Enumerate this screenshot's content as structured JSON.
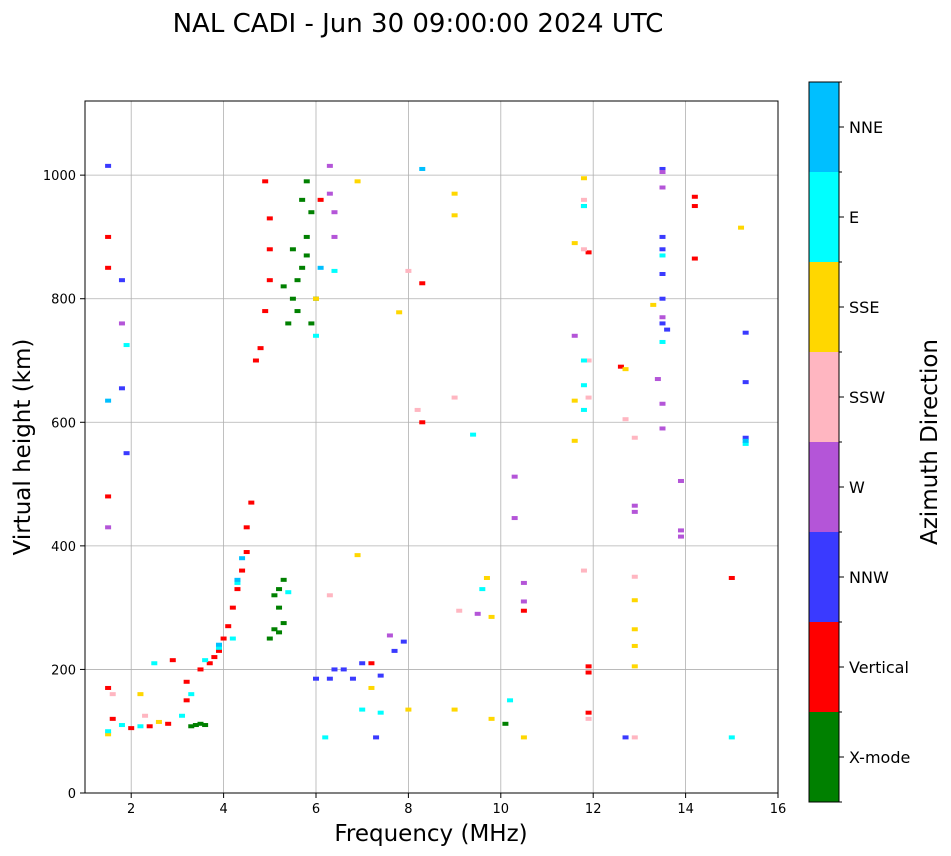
{
  "chart_data": {
    "type": "scatter",
    "title": "NAL CADI - Jun 30 09:00:00 2024 UTC",
    "xlabel": "Frequency (MHz)",
    "ylabel": "Virtual height (km)",
    "xlim": [
      1,
      16
    ],
    "ylim": [
      0,
      1120
    ],
    "xticks": [
      2,
      4,
      6,
      8,
      10,
      12,
      14,
      16
    ],
    "yticks": [
      0,
      200,
      400,
      600,
      800,
      1000
    ],
    "grid": true,
    "colorbar": {
      "label": "Azimuth Direction",
      "position": "right",
      "categories": [
        {
          "name": "X-mode",
          "color": "#008000"
        },
        {
          "name": "Vertical",
          "color": "#ff0000"
        },
        {
          "name": "NNW",
          "color": "#3a3aff"
        },
        {
          "name": "W",
          "color": "#b455d8"
        },
        {
          "name": "SSW",
          "color": "#ffb6c1"
        },
        {
          "name": "SSE",
          "color": "#ffd700"
        },
        {
          "name": "E",
          "color": "#00ffff"
        },
        {
          "name": "NNE",
          "color": "#00bfff"
        }
      ]
    },
    "series": [
      {
        "name": "X-mode",
        "points": [
          [
            3.4,
            110
          ],
          [
            3.5,
            112
          ],
          [
            3.6,
            110
          ],
          [
            3.3,
            108
          ],
          [
            5.2,
            330
          ],
          [
            5.3,
            345
          ],
          [
            5.1,
            320
          ],
          [
            5.2,
            300
          ],
          [
            5.3,
            275
          ],
          [
            5.2,
            260
          ],
          [
            5.0,
            250
          ],
          [
            5.1,
            265
          ],
          [
            5.5,
            800
          ],
          [
            5.6,
            830
          ],
          [
            5.7,
            850
          ],
          [
            5.8,
            870
          ],
          [
            5.6,
            780
          ],
          [
            5.4,
            760
          ],
          [
            5.8,
            900
          ],
          [
            5.9,
            940
          ],
          [
            5.7,
            960
          ],
          [
            5.5,
            880
          ],
          [
            5.3,
            820
          ],
          [
            5.9,
            760
          ],
          [
            6.0,
            800
          ],
          [
            5.8,
            990
          ],
          [
            10.1,
            112
          ],
          [
            11.8,
            950
          ]
        ]
      },
      {
        "name": "Vertical",
        "points": [
          [
            1.5,
            170
          ],
          [
            1.6,
            120
          ],
          [
            2.0,
            105
          ],
          [
            2.4,
            108
          ],
          [
            2.8,
            112
          ],
          [
            3.2,
            150
          ],
          [
            3.2,
            180
          ],
          [
            3.5,
            200
          ],
          [
            3.7,
            210
          ],
          [
            3.8,
            220
          ],
          [
            3.9,
            230
          ],
          [
            4.0,
            250
          ],
          [
            4.1,
            270
          ],
          [
            4.2,
            300
          ],
          [
            4.3,
            330
          ],
          [
            4.4,
            360
          ],
          [
            4.5,
            390
          ],
          [
            4.5,
            430
          ],
          [
            4.6,
            470
          ],
          [
            4.7,
            700
          ],
          [
            4.8,
            720
          ],
          [
            4.9,
            780
          ],
          [
            5.0,
            830
          ],
          [
            5.0,
            880
          ],
          [
            5.0,
            930
          ],
          [
            4.9,
            990
          ],
          [
            1.5,
            480
          ],
          [
            1.5,
            850
          ],
          [
            1.5,
            900
          ],
          [
            2.9,
            215
          ],
          [
            6.1,
            960
          ],
          [
            8.3,
            600
          ],
          [
            8.3,
            825
          ],
          [
            10.5,
            295
          ],
          [
            11.9,
            195
          ],
          [
            11.9,
            205
          ],
          [
            11.9,
            130
          ],
          [
            11.9,
            875
          ],
          [
            12.6,
            690
          ],
          [
            14.2,
            950
          ],
          [
            14.2,
            965
          ],
          [
            14.2,
            865
          ],
          [
            15.0,
            348
          ],
          [
            7.2,
            210
          ]
        ]
      },
      {
        "name": "NNW",
        "points": [
          [
            1.5,
            1015
          ],
          [
            1.8,
            830
          ],
          [
            1.8,
            655
          ],
          [
            1.9,
            550
          ],
          [
            6.0,
            185
          ],
          [
            6.3,
            185
          ],
          [
            6.6,
            200
          ],
          [
            6.8,
            185
          ],
          [
            7.0,
            210
          ],
          [
            7.4,
            190
          ],
          [
            7.3,
            90
          ],
          [
            7.7,
            230
          ],
          [
            7.9,
            245
          ],
          [
            13.5,
            1010
          ],
          [
            13.5,
            900
          ],
          [
            13.5,
            880
          ],
          [
            13.5,
            840
          ],
          [
            13.5,
            800
          ],
          [
            13.5,
            760
          ],
          [
            13.6,
            750
          ],
          [
            12.7,
            90
          ],
          [
            15.3,
            745
          ],
          [
            15.3,
            665
          ],
          [
            15.3,
            575
          ],
          [
            6.4,
            200
          ]
        ]
      },
      {
        "name": "W",
        "points": [
          [
            1.5,
            430
          ],
          [
            1.8,
            760
          ],
          [
            6.3,
            1015
          ],
          [
            6.3,
            970
          ],
          [
            6.4,
            940
          ],
          [
            6.4,
            900
          ],
          [
            10.3,
            512
          ],
          [
            10.3,
            445
          ],
          [
            10.5,
            340
          ],
          [
            10.5,
            310
          ],
          [
            12.9,
            465
          ],
          [
            12.9,
            455
          ],
          [
            13.4,
            670
          ],
          [
            13.5,
            630
          ],
          [
            13.5,
            590
          ],
          [
            13.5,
            770
          ],
          [
            13.5,
            980
          ],
          [
            13.5,
            1005
          ],
          [
            13.9,
            505
          ],
          [
            13.9,
            425
          ],
          [
            13.9,
            415
          ],
          [
            11.6,
            740
          ],
          [
            9.5,
            290
          ],
          [
            7.6,
            255
          ]
        ]
      },
      {
        "name": "SSW",
        "points": [
          [
            1.6,
            160
          ],
          [
            2.3,
            125
          ],
          [
            6.3,
            320
          ],
          [
            8.0,
            845
          ],
          [
            8.2,
            620
          ],
          [
            9.0,
            640
          ],
          [
            9.1,
            295
          ],
          [
            11.8,
            360
          ],
          [
            11.9,
            120
          ],
          [
            11.8,
            960
          ],
          [
            11.8,
            880
          ],
          [
            12.7,
            605
          ],
          [
            12.9,
            575
          ],
          [
            12.9,
            350
          ],
          [
            12.9,
            90
          ],
          [
            11.9,
            640
          ],
          [
            11.9,
            700
          ]
        ]
      },
      {
        "name": "SSE",
        "points": [
          [
            1.5,
            95
          ],
          [
            2.2,
            160
          ],
          [
            2.6,
            115
          ],
          [
            6.0,
            800
          ],
          [
            6.9,
            990
          ],
          [
            6.9,
            385
          ],
          [
            7.2,
            170
          ],
          [
            7.8,
            778
          ],
          [
            9.0,
            970
          ],
          [
            9.0,
            935
          ],
          [
            9.0,
            135
          ],
          [
            9.7,
            348
          ],
          [
            9.8,
            285
          ],
          [
            9.8,
            120
          ],
          [
            10.5,
            90
          ],
          [
            11.6,
            890
          ],
          [
            11.6,
            635
          ],
          [
            11.6,
            570
          ],
          [
            11.8,
            995
          ],
          [
            12.9,
            312
          ],
          [
            12.9,
            265
          ],
          [
            12.9,
            238
          ],
          [
            12.9,
            205
          ],
          [
            12.7,
            686
          ],
          [
            13.3,
            790
          ],
          [
            15.2,
            915
          ],
          [
            8.0,
            135
          ]
        ]
      },
      {
        "name": "E",
        "points": [
          [
            1.5,
            100
          ],
          [
            1.8,
            110
          ],
          [
            2.2,
            108
          ],
          [
            2.5,
            210
          ],
          [
            3.1,
            125
          ],
          [
            3.3,
            160
          ],
          [
            3.6,
            215
          ],
          [
            3.9,
            235
          ],
          [
            4.2,
            250
          ],
          [
            4.3,
            340
          ],
          [
            5.4,
            325
          ],
          [
            6.2,
            90
          ],
          [
            6.4,
            845
          ],
          [
            6.0,
            740
          ],
          [
            7.0,
            135
          ],
          [
            7.4,
            130
          ],
          [
            9.4,
            580
          ],
          [
            9.6,
            330
          ],
          [
            10.2,
            150
          ],
          [
            11.8,
            700
          ],
          [
            11.8,
            660
          ],
          [
            11.8,
            620
          ],
          [
            11.8,
            950
          ],
          [
            13.5,
            730
          ],
          [
            13.5,
            870
          ],
          [
            15.0,
            90
          ],
          [
            15.3,
            565
          ],
          [
            1.9,
            725
          ]
        ]
      },
      {
        "name": "NNE",
        "points": [
          [
            1.5,
            635
          ],
          [
            4.3,
            345
          ],
          [
            4.4,
            380
          ],
          [
            8.3,
            1010
          ],
          [
            15.3,
            570
          ],
          [
            6.1,
            850
          ],
          [
            3.9,
            240
          ]
        ]
      }
    ]
  }
}
